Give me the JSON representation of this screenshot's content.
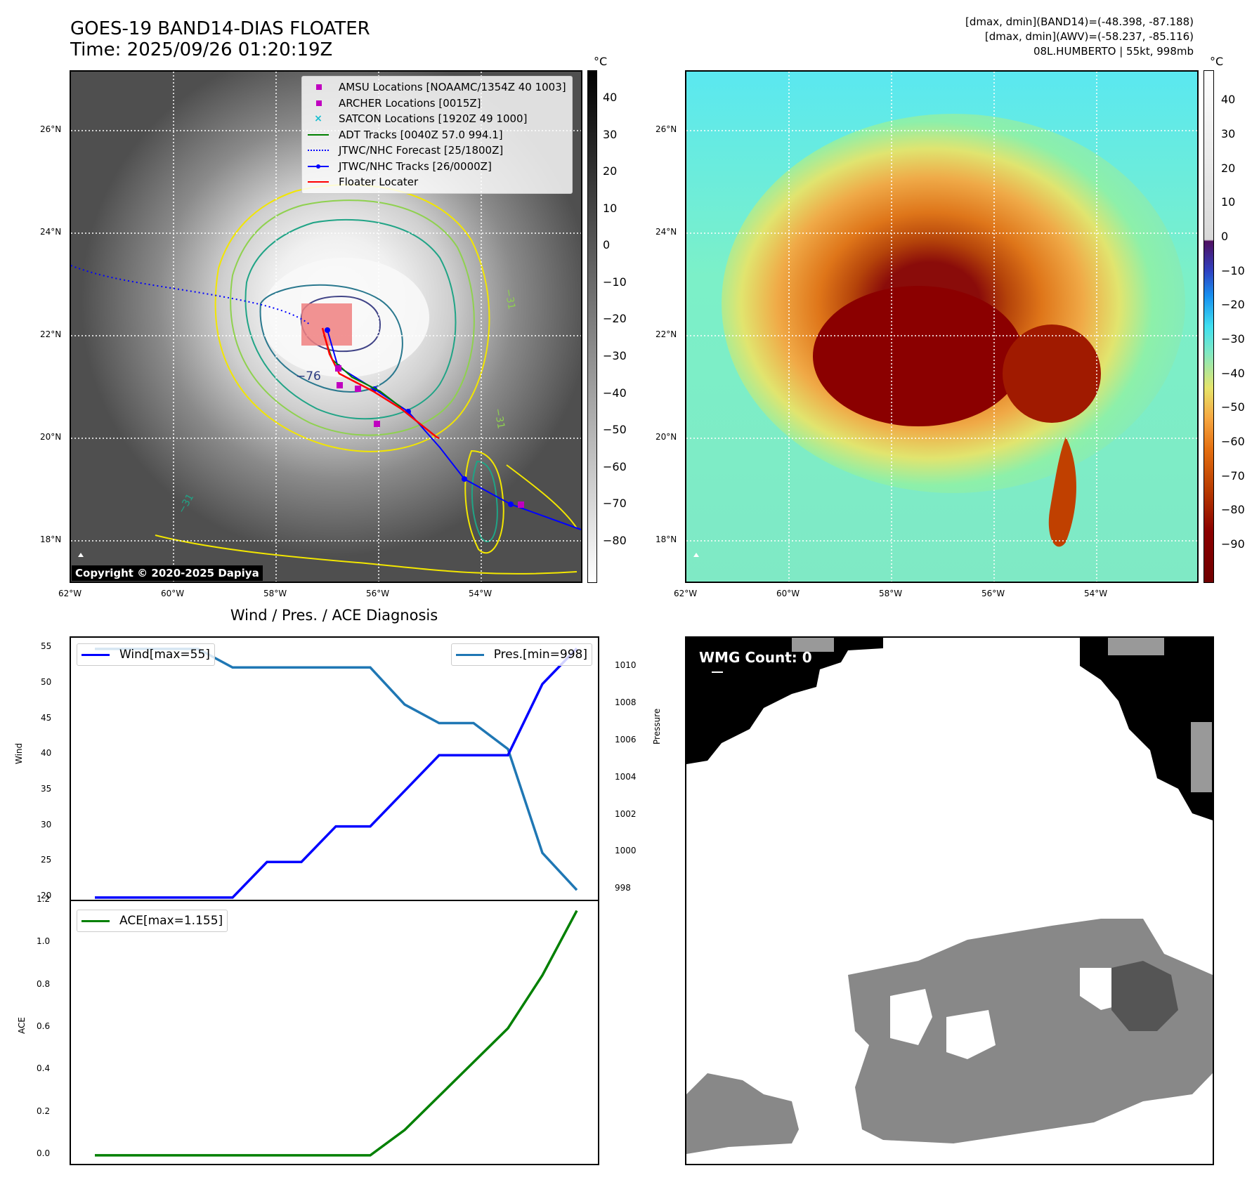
{
  "header": {
    "title_line1": "GOES-19 BAND14-DIAS FLOATER",
    "title_line2": "Time: 2025/09/26 01:20:19Z",
    "right_line1": "[dmax, dmin](BAND14)=(-48.398, -87.188)",
    "right_line2": "[dmax, dmin](AWV)=(-58.237, -85.116)",
    "right_line3": "08L.HUMBERTO | 55kt, 998mb"
  },
  "map": {
    "lat_labels": [
      "26°N",
      "24°N",
      "22°N",
      "20°N",
      "18°N"
    ],
    "lon_labels": [
      "62°W",
      "60°W",
      "58°W",
      "56°W",
      "54°W"
    ],
    "contour_labels": [
      "−76",
      "−31",
      "−31",
      "−31"
    ],
    "copyright": "Copyright © 2020-2025 Dapiya",
    "legend": [
      {
        "label": "AMSU Locations [NOAAMC/1354Z 40 1003]",
        "color": "#c000c0",
        "symbol": "square"
      },
      {
        "label": "ARCHER Locations [0015Z]",
        "color": "#c000c0",
        "symbol": "square"
      },
      {
        "label": "SATCON Locations [1920Z 49 1000]",
        "color": "#17becf",
        "symbol": "x"
      },
      {
        "label": "ADT Tracks [0040Z 57.0 994.1]",
        "color": "#008000",
        "symbol": "line"
      },
      {
        "label": "JTWC/NHC Forecast [25/1800Z]",
        "color": "#0000ff",
        "symbol": "dotted"
      },
      {
        "label": "JTWC/NHC Tracks [26/0000Z]",
        "color": "#0000ff",
        "symbol": "linedot"
      },
      {
        "label": "Floater Locater",
        "color": "#ff0000",
        "symbol": "line"
      }
    ]
  },
  "colorbar_left": {
    "unit": "°C",
    "ticks": [
      "40",
      "30",
      "20",
      "10",
      "0",
      "−10",
      "−20",
      "−30",
      "−40",
      "−50",
      "−60",
      "−70",
      "−80"
    ]
  },
  "colorbar_right": {
    "unit": "°C",
    "ticks": [
      "40",
      "30",
      "20",
      "10",
      "0",
      "−10",
      "−20",
      "−30",
      "−40",
      "−50",
      "−60",
      "−70",
      "−80",
      "−90"
    ]
  },
  "wmg": {
    "label": "WMG Count: 0"
  },
  "chart_data": [
    {
      "type": "line",
      "title": "Wind / Pres. / ACE Diagnosis",
      "ylabel": "Wind",
      "y2label": "Pressure",
      "ylim": [
        19.5,
        56.5
      ],
      "y2lim": [
        997.4,
        1011.6
      ],
      "series": [
        {
          "name": "Wind[max=55]",
          "color": "#0000ff",
          "axis": "left",
          "values": [
            20,
            20,
            20,
            20,
            20,
            25,
            25,
            30,
            30,
            35,
            40,
            40,
            40,
            50,
            55
          ]
        },
        {
          "name": "Pres.[min=998]",
          "color": "#1f77b4",
          "axis": "right",
          "values": [
            1011,
            1011,
            1011,
            1011,
            1010,
            1010,
            1010,
            1010,
            1010,
            1008,
            1007,
            1007,
            1005.6,
            1000,
            998
          ]
        }
      ],
      "yticks": [
        "20",
        "25",
        "30",
        "35",
        "40",
        "45",
        "50",
        "55"
      ],
      "y2ticks": [
        "998",
        "1000",
        "1002",
        "1004",
        "1006",
        "1008",
        "1010"
      ]
    },
    {
      "type": "line",
      "ylabel": "ACE",
      "ylim": [
        -0.04,
        1.2
      ],
      "series": [
        {
          "name": "ACE[max=1.155]",
          "color": "#008000",
          "axis": "left",
          "values": [
            0,
            0,
            0,
            0,
            0,
            0,
            0,
            0,
            0,
            0.12,
            0.28,
            0.44,
            0.6,
            0.85,
            1.155
          ]
        }
      ],
      "yticks": [
        "0.0",
        "0.2",
        "0.4",
        "0.6",
        "0.8",
        "1.0",
        "1.2"
      ]
    }
  ]
}
